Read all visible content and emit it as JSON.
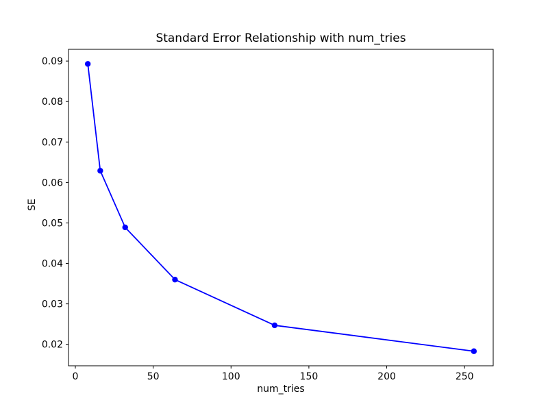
{
  "figure": {
    "background": "#ffffff"
  },
  "chart_data": {
    "type": "line",
    "title": "Standard Error Relationship with num_tries",
    "xlabel": "num_tries",
    "ylabel": "SE",
    "x": [
      8,
      16,
      32,
      64,
      128,
      256
    ],
    "y": [
      0.0893,
      0.0629,
      0.0489,
      0.036,
      0.0247,
      0.0183
    ],
    "xticks": [
      0,
      50,
      100,
      150,
      200,
      250
    ],
    "yticks": [
      0.02,
      0.03,
      0.04,
      0.05,
      0.06,
      0.07,
      0.08,
      0.09
    ],
    "xlim": [
      -4.4,
      268.4
    ],
    "ylim": [
      0.0147,
      0.0929
    ],
    "line_color": "#0000ff",
    "marker": "o",
    "grid": false,
    "legend": false
  }
}
